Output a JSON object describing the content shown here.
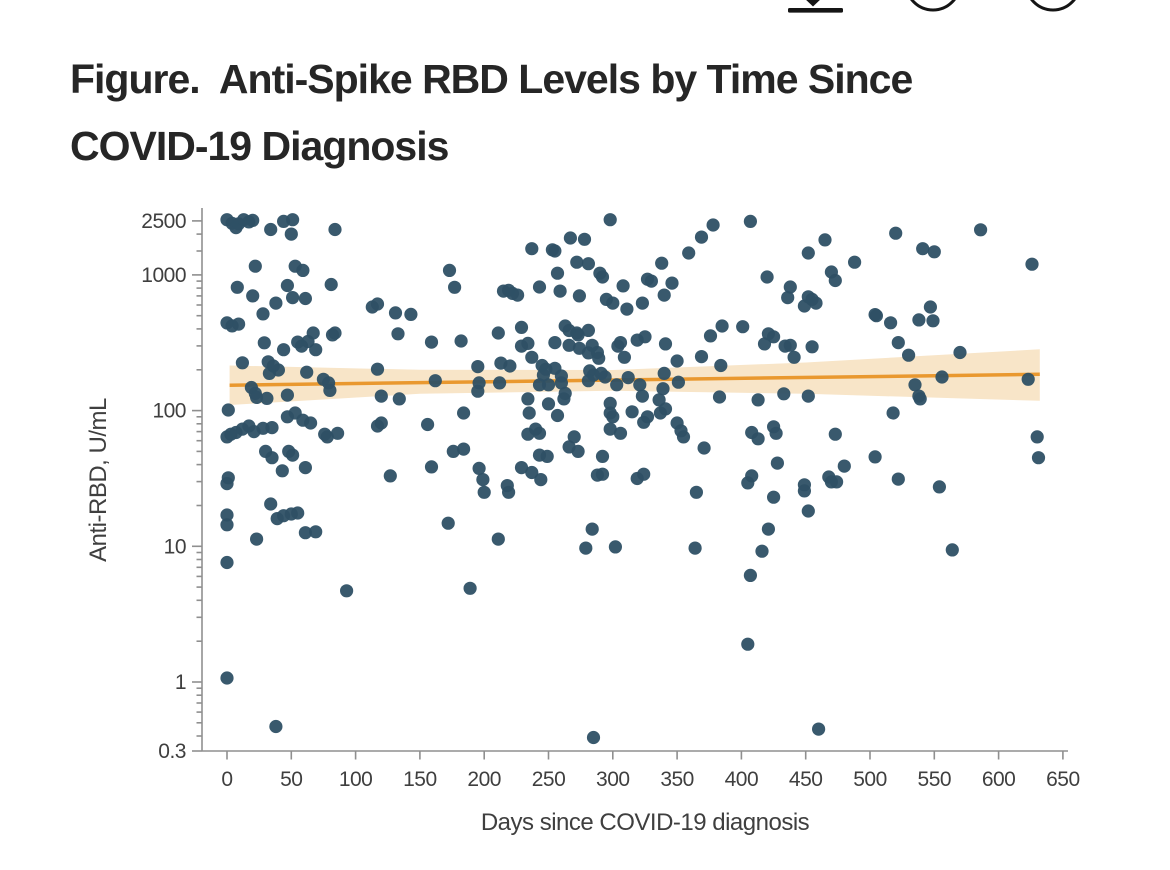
{
  "figure": {
    "title": "Figure.  Anti-Spike RBD Levels by Time Since\nCOVID-19 Diagnosis"
  },
  "toolbar": {
    "icons": [
      "download-icon",
      "circle-button",
      "circle-button"
    ]
  },
  "chart_data": {
    "type": "scatter",
    "title": "Anti-Spike RBD Levels by Time Since COVID-19 Diagnosis",
    "xlabel": "Days since COVID-19 diagnosis",
    "ylabel": "Anti-RBD, U/mL",
    "x_scale": "linear",
    "y_scale": "log",
    "xlim": [
      0,
      650
    ],
    "ylim": [
      0.3,
      2700
    ],
    "grid": false,
    "legend": "none",
    "x_ticks": [
      0,
      50,
      100,
      150,
      200,
      250,
      300,
      350,
      400,
      450,
      500,
      550,
      600,
      650
    ],
    "y_ticks": [
      2500,
      1000,
      100,
      10,
      1,
      0.3
    ],
    "y_minor_ticks": [
      2000,
      1500,
      900,
      800,
      700,
      600,
      500,
      400,
      300,
      200,
      90,
      80,
      70,
      60,
      50,
      40,
      30,
      20,
      9,
      8,
      7,
      6,
      5,
      4,
      3,
      2,
      0.9,
      0.8,
      0.7,
      0.6,
      0.5,
      0.4
    ],
    "colors": {
      "point": "#2e5065",
      "trend": "#e9982f",
      "band": "#f8e5c8",
      "axis": "#8f8f8f",
      "text": "#3f3f3f",
      "icon": "#151515"
    },
    "trend": {
      "x": [
        2,
        632
      ],
      "y": [
        154,
        185
      ]
    },
    "trend_band": {
      "x": [
        2,
        150,
        300,
        450,
        632
      ],
      "upper": [
        215,
        200,
        199,
        226,
        283
      ],
      "lower": [
        110,
        133,
        140,
        133,
        118
      ]
    },
    "points": [
      [
        0,
        2550
      ],
      [
        4,
        2400
      ],
      [
        7,
        2230
      ],
      [
        9,
        2380
      ],
      [
        13,
        2550
      ],
      [
        17,
        2460
      ],
      [
        20,
        2520
      ],
      [
        34,
        2160
      ],
      [
        44,
        2480
      ],
      [
        50,
        2000
      ],
      [
        51,
        2550
      ],
      [
        84,
        2160
      ],
      [
        22,
        1160
      ],
      [
        53,
        1160
      ],
      [
        59,
        1080
      ],
      [
        8,
        810
      ],
      [
        20,
        700
      ],
      [
        28,
        516
      ],
      [
        38,
        620
      ],
      [
        47,
        835
      ],
      [
        51,
        680
      ],
      [
        61,
        670
      ],
      [
        81,
        850
      ],
      [
        0,
        443
      ],
      [
        4,
        421
      ],
      [
        9,
        434
      ],
      [
        29,
        316
      ],
      [
        44,
        281
      ],
      [
        55,
        320
      ],
      [
        58,
        299
      ],
      [
        63,
        323
      ],
      [
        67,
        373
      ],
      [
        69,
        281
      ],
      [
        82,
        361
      ],
      [
        84,
        373
      ],
      [
        12,
        225
      ],
      [
        32,
        229
      ],
      [
        36,
        213
      ],
      [
        40,
        199
      ],
      [
        33,
        188
      ],
      [
        19,
        148
      ],
      [
        22,
        134
      ],
      [
        23,
        125
      ],
      [
        31,
        123
      ],
      [
        47,
        130
      ],
      [
        1,
        101
      ],
      [
        62,
        192
      ],
      [
        75,
        170
      ],
      [
        79,
        160
      ],
      [
        80,
        141
      ],
      [
        7,
        69
      ],
      [
        12,
        73
      ],
      [
        17,
        77
      ],
      [
        21,
        70
      ],
      [
        28,
        74
      ],
      [
        35,
        75
      ],
      [
        0,
        64
      ],
      [
        3,
        67
      ],
      [
        30,
        50
      ],
      [
        35,
        45
      ],
      [
        43,
        36
      ],
      [
        1,
        32
      ],
      [
        47,
        90
      ],
      [
        53,
        96
      ],
      [
        59,
        85
      ],
      [
        65,
        81
      ],
      [
        76,
        67
      ],
      [
        78,
        64
      ],
      [
        86,
        68
      ],
      [
        48,
        50
      ],
      [
        51,
        47
      ],
      [
        61,
        38
      ],
      [
        0,
        29
      ],
      [
        34,
        20.5
      ],
      [
        0,
        17
      ],
      [
        0,
        14.4
      ],
      [
        39,
        16
      ],
      [
        44,
        16.8
      ],
      [
        50,
        17.3
      ],
      [
        55,
        17.6
      ],
      [
        61,
        12.6
      ],
      [
        69,
        12.8
      ],
      [
        23,
        11.3
      ],
      [
        0,
        7.6
      ],
      [
        0,
        1.07
      ],
      [
        38,
        0.47
      ],
      [
        93,
        4.7
      ],
      [
        113,
        580
      ],
      [
        117,
        610
      ],
      [
        131,
        525
      ],
      [
        143,
        512
      ],
      [
        173,
        1080
      ],
      [
        177,
        810
      ],
      [
        117,
        202
      ],
      [
        120,
        128
      ],
      [
        134,
        122
      ],
      [
        162,
        166
      ],
      [
        133,
        368
      ],
      [
        159,
        320
      ],
      [
        182,
        326
      ],
      [
        195,
        211
      ],
      [
        196,
        160
      ],
      [
        195,
        139
      ],
      [
        117,
        77
      ],
      [
        120,
        81
      ],
      [
        156,
        79
      ],
      [
        184,
        96
      ],
      [
        176,
        50
      ],
      [
        159,
        38.5
      ],
      [
        127,
        33
      ],
      [
        196,
        37.5
      ],
      [
        184,
        52
      ],
      [
        172,
        14.8
      ],
      [
        189,
        4.9
      ],
      [
        199,
        31
      ],
      [
        200,
        25
      ],
      [
        215,
        760
      ],
      [
        219,
        770
      ],
      [
        222,
        730
      ],
      [
        226,
        710
      ],
      [
        237,
        1560
      ],
      [
        243,
        815
      ],
      [
        253,
        1530
      ],
      [
        255,
        1500
      ],
      [
        257,
        1030
      ],
      [
        259,
        760
      ],
      [
        267,
        1870
      ],
      [
        272,
        1240
      ],
      [
        274,
        700
      ],
      [
        278,
        1830
      ],
      [
        281,
        1210
      ],
      [
        290,
        1030
      ],
      [
        292,
        965
      ],
      [
        295,
        660
      ],
      [
        298,
        2550
      ],
      [
        300,
        620
      ],
      [
        308,
        830
      ],
      [
        311,
        560
      ],
      [
        323,
        620
      ],
      [
        327,
        930
      ],
      [
        211,
        373
      ],
      [
        213,
        224
      ],
      [
        220,
        213
      ],
      [
        229,
        410
      ],
      [
        229,
        299
      ],
      [
        234,
        313
      ],
      [
        237,
        247
      ],
      [
        243,
        155
      ],
      [
        245,
        215
      ],
      [
        246,
        183
      ],
      [
        248,
        202
      ],
      [
        250,
        155
      ],
      [
        255,
        317
      ],
      [
        255,
        205
      ],
      [
        260,
        180
      ],
      [
        262,
        122
      ],
      [
        263,
        420
      ],
      [
        263,
        134
      ],
      [
        266,
        303
      ],
      [
        266,
        389
      ],
      [
        272,
        373
      ],
      [
        273,
        361
      ],
      [
        274,
        288
      ],
      [
        281,
        390
      ],
      [
        281,
        266
      ],
      [
        282,
        196
      ],
      [
        284,
        303
      ],
      [
        285,
        183
      ],
      [
        288,
        268
      ],
      [
        289,
        243
      ],
      [
        291,
        188
      ],
      [
        294,
        177
      ],
      [
        298,
        113
      ],
      [
        303,
        155
      ],
      [
        304,
        299
      ],
      [
        306,
        317
      ],
      [
        309,
        247
      ],
      [
        312,
        175
      ],
      [
        319,
        331
      ],
      [
        321,
        155
      ],
      [
        323,
        128
      ],
      [
        325,
        350
      ],
      [
        234,
        122
      ],
      [
        235,
        96
      ],
      [
        250,
        112
      ],
      [
        257,
        92
      ],
      [
        260,
        160
      ],
      [
        281,
        166
      ],
      [
        212,
        160
      ],
      [
        240,
        73
      ],
      [
        243,
        68
      ],
      [
        234,
        67
      ],
      [
        270,
        64
      ],
      [
        266,
        54
      ],
      [
        243,
        47
      ],
      [
        249,
        46
      ],
      [
        229,
        38
      ],
      [
        237,
        35
      ],
      [
        273,
        50
      ],
      [
        288,
        33.5
      ],
      [
        292,
        46
      ],
      [
        292,
        34
      ],
      [
        298,
        73
      ],
      [
        306,
        68
      ],
      [
        319,
        31.6
      ],
      [
        324,
        82
      ],
      [
        324,
        34
      ],
      [
        315,
        98
      ],
      [
        327,
        90
      ],
      [
        298,
        96
      ],
      [
        300,
        90
      ],
      [
        219,
        25
      ],
      [
        211,
        11.3
      ],
      [
        284,
        13.4
      ],
      [
        279,
        9.7
      ],
      [
        302,
        9.9
      ],
      [
        285,
        0.39
      ],
      [
        218,
        28
      ],
      [
        244,
        31
      ],
      [
        330,
        900
      ],
      [
        338,
        1220
      ],
      [
        340,
        710
      ],
      [
        346,
        870
      ],
      [
        359,
        1450
      ],
      [
        369,
        1900
      ],
      [
        378,
        2330
      ],
      [
        407,
        2480
      ],
      [
        420,
        965
      ],
      [
        436,
        680
      ],
      [
        438,
        815
      ],
      [
        449,
        590
      ],
      [
        452,
        690
      ],
      [
        452,
        1450
      ],
      [
        455,
        660
      ],
      [
        458,
        620
      ],
      [
        465,
        1810
      ],
      [
        470,
        1050
      ],
      [
        473,
        910
      ],
      [
        488,
        1240
      ],
      [
        504,
        510
      ],
      [
        336,
        120
      ],
      [
        339,
        145
      ],
      [
        340,
        188
      ],
      [
        341,
        310
      ],
      [
        341,
        103
      ],
      [
        350,
        232
      ],
      [
        351,
        162
      ],
      [
        369,
        250
      ],
      [
        376,
        355
      ],
      [
        383,
        126
      ],
      [
        384,
        215
      ],
      [
        385,
        420
      ],
      [
        401,
        415
      ],
      [
        413,
        120
      ],
      [
        418,
        310
      ],
      [
        421,
        368
      ],
      [
        425,
        350
      ],
      [
        433,
        133
      ],
      [
        434,
        299
      ],
      [
        438,
        303
      ],
      [
        441,
        247
      ],
      [
        452,
        128
      ],
      [
        455,
        295
      ],
      [
        337,
        96
      ],
      [
        350,
        81
      ],
      [
        353,
        71
      ],
      [
        355,
        64
      ],
      [
        371,
        53
      ],
      [
        408,
        69
      ],
      [
        413,
        62
      ],
      [
        425,
        76
      ],
      [
        427,
        68
      ],
      [
        428,
        41
      ],
      [
        408,
        33
      ],
      [
        449,
        28.4
      ],
      [
        468,
        32.4
      ],
      [
        473,
        67
      ],
      [
        480,
        39
      ],
      [
        365,
        25
      ],
      [
        405,
        29.3
      ],
      [
        425,
        23
      ],
      [
        449,
        25.6
      ],
      [
        470,
        29.8
      ],
      [
        474,
        29.8
      ],
      [
        452,
        18.2
      ],
      [
        421,
        13.4
      ],
      [
        364,
        9.7
      ],
      [
        416,
        9.2
      ],
      [
        407,
        6.1
      ],
      [
        405,
        1.9
      ],
      [
        460,
        0.45
      ],
      [
        520,
        2030
      ],
      [
        541,
        1560
      ],
      [
        550,
        1480
      ],
      [
        586,
        2150
      ],
      [
        626,
        1200
      ],
      [
        547,
        580
      ],
      [
        505,
        500
      ],
      [
        516,
        444
      ],
      [
        522,
        317
      ],
      [
        530,
        256
      ],
      [
        535,
        155
      ],
      [
        538,
        466
      ],
      [
        538,
        128
      ],
      [
        539,
        122
      ],
      [
        549,
        459
      ],
      [
        556,
        177
      ],
      [
        518,
        96
      ],
      [
        570,
        268
      ],
      [
        623,
        170
      ],
      [
        504,
        45.6
      ],
      [
        630,
        64
      ],
      [
        631,
        45
      ],
      [
        522,
        31.3
      ],
      [
        554,
        27.4
      ],
      [
        564,
        9.4
      ]
    ]
  }
}
